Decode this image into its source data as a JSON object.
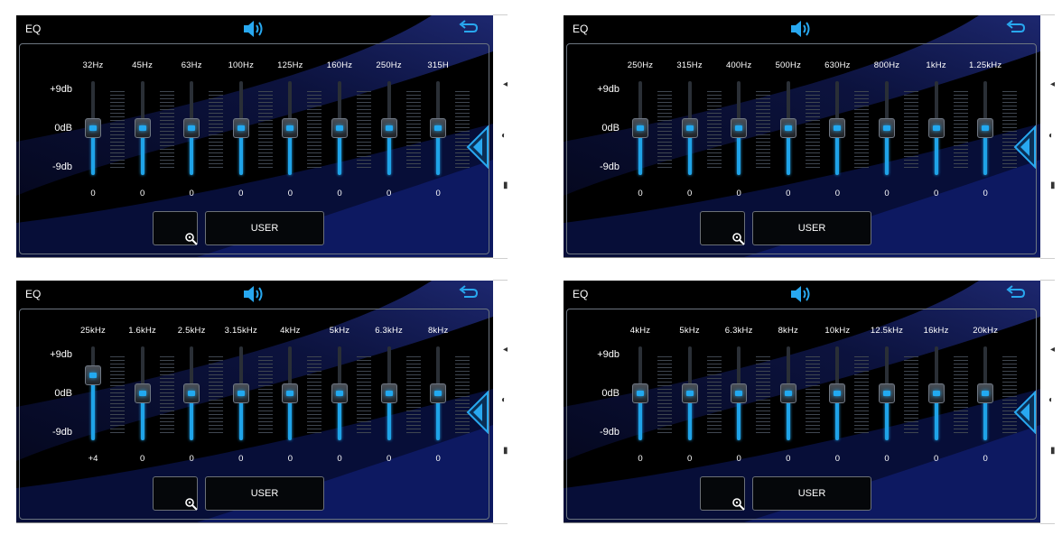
{
  "panels": [
    {
      "title": "EQ",
      "scale": [
        "+9db",
        "0dB",
        "-9db"
      ],
      "bands": [
        {
          "freq": "32Hz",
          "value": "0",
          "level": 0
        },
        {
          "freq": "45Hz",
          "value": "0",
          "level": 0
        },
        {
          "freq": "63Hz",
          "value": "0",
          "level": 0
        },
        {
          "freq": "100Hz",
          "value": "0",
          "level": 0
        },
        {
          "freq": "125Hz",
          "value": "0",
          "level": 0
        },
        {
          "freq": "160Hz",
          "value": "0",
          "level": 0
        },
        {
          "freq": "250Hz",
          "value": "0",
          "level": 0
        },
        {
          "freq": "315H",
          "value": "0",
          "level": 0
        }
      ],
      "preset_button": "USER"
    },
    {
      "title": "EQ",
      "scale": [
        "+9db",
        "0dB",
        "-9db"
      ],
      "bands": [
        {
          "freq": "250Hz",
          "value": "0",
          "level": 0
        },
        {
          "freq": "315Hz",
          "value": "0",
          "level": 0
        },
        {
          "freq": "400Hz",
          "value": "0",
          "level": 0
        },
        {
          "freq": "500Hz",
          "value": "0",
          "level": 0
        },
        {
          "freq": "630Hz",
          "value": "0",
          "level": 0
        },
        {
          "freq": "800Hz",
          "value": "0",
          "level": 0
        },
        {
          "freq": "1kHz",
          "value": "0",
          "level": 0
        },
        {
          "freq": "1.25kHz",
          "value": "0",
          "level": 0
        }
      ],
      "preset_button": "USER"
    },
    {
      "title": "EQ",
      "scale": [
        "+9db",
        "0dB",
        "-9db"
      ],
      "bands": [
        {
          "freq": "25kHz",
          "value": "+4",
          "level": 4
        },
        {
          "freq": "1.6kHz",
          "value": "0",
          "level": 0
        },
        {
          "freq": "2.5kHz",
          "value": "0",
          "level": 0
        },
        {
          "freq": "3.15kHz",
          "value": "0",
          "level": 0
        },
        {
          "freq": "4kHz",
          "value": "0",
          "level": 0
        },
        {
          "freq": "5kHz",
          "value": "0",
          "level": 0
        },
        {
          "freq": "6.3kHz",
          "value": "0",
          "level": 0
        },
        {
          "freq": "8kHz",
          "value": "0",
          "level": 0
        }
      ],
      "preset_button": "USER"
    },
    {
      "title": "EQ",
      "scale": [
        "+9db",
        "0dB",
        "-9db"
      ],
      "bands": [
        {
          "freq": "4kHz",
          "value": "0",
          "level": 0
        },
        {
          "freq": "5kHz",
          "value": "0",
          "level": 0
        },
        {
          "freq": "6.3kHz",
          "value": "0",
          "level": 0
        },
        {
          "freq": "8kHz",
          "value": "0",
          "level": 0
        },
        {
          "freq": "10kHz",
          "value": "0",
          "level": 0
        },
        {
          "freq": "12.5kHz",
          "value": "0",
          "level": 0
        },
        {
          "freq": "16kHz",
          "value": "0",
          "level": 0
        },
        {
          "freq": "20kHz",
          "value": "0",
          "level": 0
        }
      ],
      "preset_button": "USER"
    }
  ],
  "icons": {
    "volume": "speaker-icon",
    "back": "back-arrow-icon",
    "zoom": "zoom-icon",
    "scroll": "left-arrow-icon"
  },
  "colors": {
    "accent": "#1fa3e8",
    "background": "#000000",
    "glow": "#1b2a8c"
  },
  "level_range": [
    -9,
    9
  ]
}
